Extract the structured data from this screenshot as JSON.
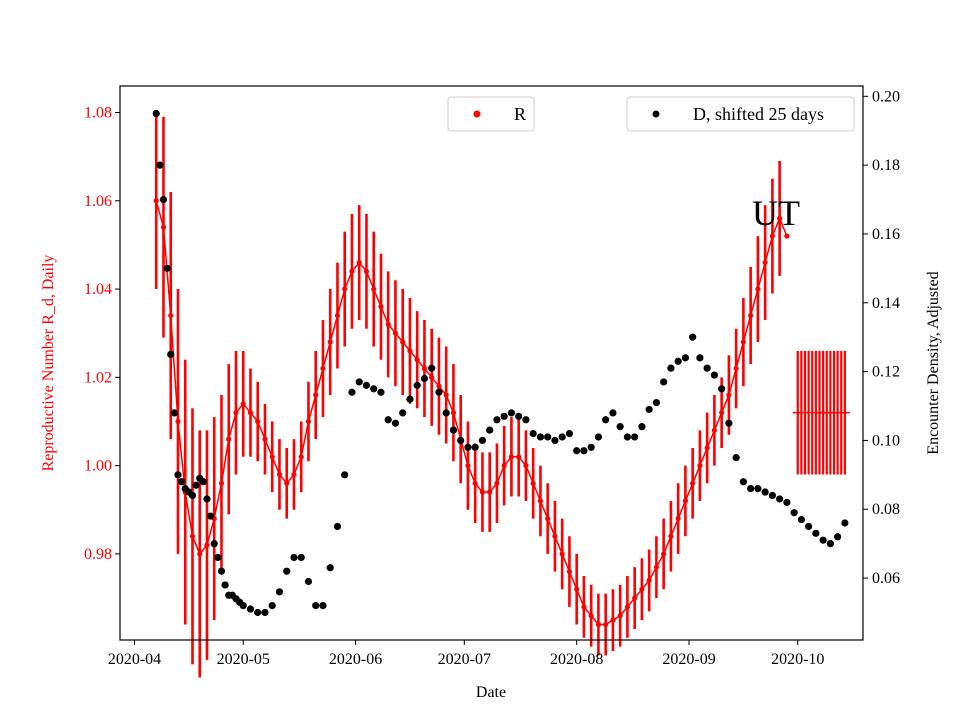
{
  "chart_data": {
    "type": "scatter",
    "xlabel": "Date",
    "ylabel_left": "Reproductive Number R_d, Daily",
    "ylabel_right": "Encounter Density, Adjusted",
    "annotation": "UT",
    "x_ticks": [
      "2020-04",
      "2020-05",
      "2020-06",
      "2020-07",
      "2020-08",
      "2020-09",
      "2020-10"
    ],
    "y_left_ticks": [
      "0.98",
      "1.00",
      "1.02",
      "1.04",
      "1.06",
      "1.08"
    ],
    "y_right_ticks": [
      "0.06",
      "0.08",
      "0.10",
      "0.12",
      "0.14",
      "0.16",
      "0.18",
      "0.20"
    ],
    "xlim": [
      "2020-03-28",
      "2020-10-19"
    ],
    "ylim_left": [
      0.9605,
      1.086
    ],
    "ylim_right": [
      0.042,
      0.203
    ],
    "legend": {
      "r_label": "R",
      "d_label": "D, shifted 25 days",
      "r_placement": "top-center",
      "d_placement": "top-right"
    },
    "colors": {
      "r": "#ff0000",
      "d": "#000000",
      "left_axis": "#ff0000",
      "right_axis": "#000000"
    },
    "series": [
      {
        "name": "R",
        "axis": "left",
        "x": [
          "2020-04-07",
          "2020-04-09",
          "2020-04-11",
          "2020-04-13",
          "2020-04-15",
          "2020-04-17",
          "2020-04-19",
          "2020-04-21",
          "2020-04-23",
          "2020-04-25",
          "2020-04-27",
          "2020-04-29",
          "2020-05-01",
          "2020-05-03",
          "2020-05-05",
          "2020-05-07",
          "2020-05-09",
          "2020-05-11",
          "2020-05-13",
          "2020-05-15",
          "2020-05-17",
          "2020-05-19",
          "2020-05-21",
          "2020-05-23",
          "2020-05-25",
          "2020-05-27",
          "2020-05-29",
          "2020-05-31",
          "2020-06-02",
          "2020-06-04",
          "2020-06-06",
          "2020-06-08",
          "2020-06-10",
          "2020-06-12",
          "2020-06-14",
          "2020-06-16",
          "2020-06-18",
          "2020-06-20",
          "2020-06-22",
          "2020-06-24",
          "2020-06-26",
          "2020-06-28",
          "2020-06-30",
          "2020-07-02",
          "2020-07-04",
          "2020-07-06",
          "2020-07-08",
          "2020-07-10",
          "2020-07-12",
          "2020-07-14",
          "2020-07-16",
          "2020-07-18",
          "2020-07-20",
          "2020-07-22",
          "2020-07-24",
          "2020-07-26",
          "2020-07-28",
          "2020-07-30",
          "2020-08-01",
          "2020-08-03",
          "2020-08-05",
          "2020-08-07",
          "2020-08-09",
          "2020-08-11",
          "2020-08-13",
          "2020-08-15",
          "2020-08-17",
          "2020-08-19",
          "2020-08-21",
          "2020-08-23",
          "2020-08-25",
          "2020-08-27",
          "2020-08-29",
          "2020-08-31",
          "2020-09-02",
          "2020-09-04",
          "2020-09-06",
          "2020-09-08",
          "2020-09-10",
          "2020-09-12",
          "2020-09-14",
          "2020-09-16",
          "2020-09-18",
          "2020-09-20",
          "2020-09-22",
          "2020-09-24",
          "2020-09-26",
          "2020-09-28"
        ],
        "y": [
          1.06,
          1.054,
          1.034,
          1.01,
          0.994,
          0.984,
          0.98,
          0.982,
          0.988,
          0.996,
          1.006,
          1.012,
          1.014,
          1.012,
          1.01,
          1.006,
          1.002,
          0.998,
          0.996,
          0.998,
          1.002,
          1.01,
          1.016,
          1.022,
          1.028,
          1.034,
          1.04,
          1.044,
          1.046,
          1.044,
          1.04,
          1.036,
          1.032,
          1.03,
          1.028,
          1.026,
          1.024,
          1.022,
          1.02,
          1.018,
          1.016,
          1.012,
          1.006,
          1.0,
          0.996,
          0.994,
          0.994,
          0.996,
          1.0,
          1.002,
          1.002,
          1.0,
          0.996,
          0.992,
          0.988,
          0.984,
          0.98,
          0.976,
          0.972,
          0.968,
          0.966,
          0.964,
          0.964,
          0.965,
          0.966,
          0.968,
          0.97,
          0.972,
          0.974,
          0.977,
          0.98,
          0.984,
          0.988,
          0.992,
          0.996,
          1.0,
          1.004,
          1.008,
          1.012,
          1.016,
          1.022,
          1.028,
          1.034,
          1.04,
          1.046,
          1.052,
          1.056,
          1.052
        ],
        "err": [
          0.02,
          0.025,
          0.028,
          0.03,
          0.03,
          0.029,
          0.028,
          0.026,
          0.023,
          0.02,
          0.017,
          0.014,
          0.012,
          0.01,
          0.009,
          0.008,
          0.008,
          0.008,
          0.008,
          0.008,
          0.008,
          0.009,
          0.01,
          0.011,
          0.012,
          0.012,
          0.013,
          0.013,
          0.013,
          0.013,
          0.013,
          0.012,
          0.012,
          0.012,
          0.012,
          0.012,
          0.011,
          0.011,
          0.011,
          0.011,
          0.011,
          0.011,
          0.01,
          0.01,
          0.009,
          0.009,
          0.009,
          0.009,
          0.009,
          0.009,
          0.009,
          0.008,
          0.008,
          0.008,
          0.008,
          0.008,
          0.008,
          0.008,
          0.008,
          0.007,
          0.007,
          0.007,
          0.007,
          0.007,
          0.007,
          0.007,
          0.007,
          0.007,
          0.007,
          0.007,
          0.008,
          0.008,
          0.008,
          0.008,
          0.008,
          0.008,
          0.008,
          0.008,
          0.008,
          0.009,
          0.009,
          0.01,
          0.011,
          0.012,
          0.013,
          0.013,
          0.013,
          0.0
        ]
      },
      {
        "name": "D, shifted 25 days",
        "axis": "right",
        "x": [
          "2020-04-07",
          "2020-04-08",
          "2020-04-09",
          "2020-04-10",
          "2020-04-11",
          "2020-04-12",
          "2020-04-13",
          "2020-04-14",
          "2020-04-15",
          "2020-04-16",
          "2020-04-17",
          "2020-04-18",
          "2020-04-19",
          "2020-04-20",
          "2020-04-21",
          "2020-04-22",
          "2020-04-23",
          "2020-04-24",
          "2020-04-25",
          "2020-04-26",
          "2020-04-27",
          "2020-04-28",
          "2020-04-29",
          "2020-04-30",
          "2020-05-01",
          "2020-05-03",
          "2020-05-05",
          "2020-05-07",
          "2020-05-09",
          "2020-05-11",
          "2020-05-13",
          "2020-05-15",
          "2020-05-17",
          "2020-05-19",
          "2020-05-21",
          "2020-05-23",
          "2020-05-25",
          "2020-05-27",
          "2020-05-29",
          "2020-05-31",
          "2020-06-02",
          "2020-06-04",
          "2020-06-06",
          "2020-06-08",
          "2020-06-10",
          "2020-06-12",
          "2020-06-14",
          "2020-06-16",
          "2020-06-18",
          "2020-06-20",
          "2020-06-22",
          "2020-06-24",
          "2020-06-26",
          "2020-06-28",
          "2020-06-30",
          "2020-07-02",
          "2020-07-04",
          "2020-07-06",
          "2020-07-08",
          "2020-07-10",
          "2020-07-12",
          "2020-07-14",
          "2020-07-16",
          "2020-07-18",
          "2020-07-20",
          "2020-07-22",
          "2020-07-24",
          "2020-07-26",
          "2020-07-28",
          "2020-07-30",
          "2020-08-01",
          "2020-08-03",
          "2020-08-05",
          "2020-08-07",
          "2020-08-09",
          "2020-08-11",
          "2020-08-13",
          "2020-08-15",
          "2020-08-17",
          "2020-08-19",
          "2020-08-21",
          "2020-08-23",
          "2020-08-25",
          "2020-08-27",
          "2020-08-29",
          "2020-08-31",
          "2020-09-02",
          "2020-09-04",
          "2020-09-06",
          "2020-09-08",
          "2020-09-10",
          "2020-09-12",
          "2020-09-14",
          "2020-09-16",
          "2020-09-18",
          "2020-09-20",
          "2020-09-22",
          "2020-09-24",
          "2020-09-26",
          "2020-09-28",
          "2020-09-30",
          "2020-10-02",
          "2020-10-04",
          "2020-10-06",
          "2020-10-08",
          "2020-10-10",
          "2020-10-12",
          "2020-10-14"
        ],
        "y": [
          0.195,
          0.18,
          0.17,
          0.15,
          0.125,
          0.108,
          0.09,
          0.088,
          0.086,
          0.085,
          0.084,
          0.087,
          0.089,
          0.088,
          0.083,
          0.078,
          0.07,
          0.066,
          0.062,
          0.058,
          0.055,
          0.055,
          0.054,
          0.053,
          0.052,
          0.051,
          0.05,
          0.05,
          0.052,
          0.056,
          0.062,
          0.066,
          0.066,
          0.059,
          0.052,
          0.052,
          0.063,
          0.075,
          0.09,
          0.114,
          0.117,
          0.116,
          0.115,
          0.114,
          0.106,
          0.105,
          0.108,
          0.112,
          0.116,
          0.118,
          0.121,
          0.114,
          0.108,
          0.103,
          0.1,
          0.098,
          0.098,
          0.1,
          0.103,
          0.106,
          0.107,
          0.108,
          0.107,
          0.106,
          0.102,
          0.101,
          0.101,
          0.1,
          0.101,
          0.102,
          0.097,
          0.097,
          0.098,
          0.101,
          0.106,
          0.108,
          0.104,
          0.101,
          0.101,
          0.104,
          0.109,
          0.111,
          0.117,
          0.121,
          0.123,
          0.124,
          0.13,
          0.124,
          0.121,
          0.119,
          0.115,
          0.105,
          0.095,
          0.088,
          0.086,
          0.086,
          0.085,
          0.084,
          0.083,
          0.082,
          0.079,
          0.077,
          0.075,
          0.073,
          0.071,
          0.07,
          0.072,
          0.076
        ]
      },
      {
        "name": "",
        "axis": "left",
        "x": [
          "2020-10-01",
          "2020-10-02",
          "2020-10-03",
          "2020-10-04",
          "2020-10-05",
          "2020-10-06",
          "2020-10-07",
          "2020-10-08",
          "2020-10-09",
          "2020-10-10",
          "2020-10-11",
          "2020-10-12",
          "2020-10-13",
          "2020-10-14"
        ],
        "y": [
          1.012,
          1.012,
          1.012,
          1.012,
          1.012,
          1.012,
          1.012,
          1.012,
          1.012,
          1.012,
          1.012,
          1.012,
          1.012,
          1.012
        ],
        "err": [
          0.014,
          0.014,
          0.014,
          0.014,
          0.014,
          0.014,
          0.014,
          0.014,
          0.014,
          0.014,
          0.014,
          0.014,
          0.014,
          0.014
        ]
      }
    ]
  }
}
